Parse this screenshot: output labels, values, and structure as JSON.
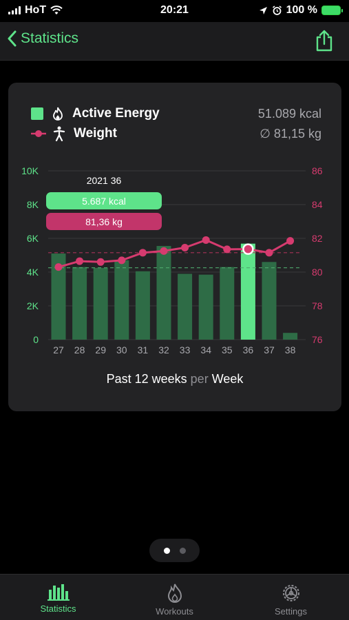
{
  "status_bar": {
    "carrier": "HoT",
    "time": "20:21",
    "battery": "100 %"
  },
  "nav": {
    "back_label": "Statistics",
    "share_icon": "share-icon"
  },
  "legend": {
    "energy": {
      "label": "Active Energy",
      "value": "51.089 kcal",
      "color": "#5ee38a"
    },
    "weight": {
      "label": "Weight",
      "value": "∅  81,15 kg",
      "color": "#d63b6f"
    }
  },
  "selection": {
    "header": "2021 36",
    "energy": "5.687 kcal",
    "weight": "81,36 kg"
  },
  "footer": {
    "range": "Past 12 weeks",
    "per": "per",
    "unit": "Week"
  },
  "chart_data": {
    "type": "bar",
    "categories": [
      "27",
      "28",
      "29",
      "30",
      "31",
      "32",
      "33",
      "34",
      "35",
      "36",
      "37",
      "38"
    ],
    "series": [
      {
        "name": "Active Energy",
        "type": "bar",
        "axis": "left",
        "values": [
          5100,
          4300,
          4250,
          4700,
          4050,
          5550,
          3900,
          3850,
          4300,
          5687,
          4600,
          400
        ]
      },
      {
        "name": "Weight",
        "type": "line",
        "axis": "right",
        "values": [
          80.3,
          80.65,
          80.6,
          80.7,
          81.15,
          81.25,
          81.45,
          81.9,
          81.35,
          81.36,
          81.15,
          81.85
        ]
      }
    ],
    "left_axis": {
      "ticks": [
        "0",
        "2K",
        "4K",
        "6K",
        "8K",
        "10K"
      ],
      "ylim": [
        0,
        10000
      ],
      "color": "#5ee38a"
    },
    "right_axis": {
      "ticks": [
        "76",
        "78",
        "80",
        "82",
        "84",
        "86"
      ],
      "ylim": [
        76,
        86
      ],
      "color": "#d63b6f"
    },
    "average_energy": 4257,
    "average_weight": 81.15,
    "selected_index": 9,
    "grid": true
  },
  "pager": {
    "pages": 2,
    "current": 0
  },
  "tabs": [
    {
      "label": "Statistics",
      "icon": "bar-chart-icon",
      "active": true
    },
    {
      "label": "Workouts",
      "icon": "flame-icon",
      "active": false
    },
    {
      "label": "Settings",
      "icon": "gear-icon",
      "active": false
    }
  ]
}
